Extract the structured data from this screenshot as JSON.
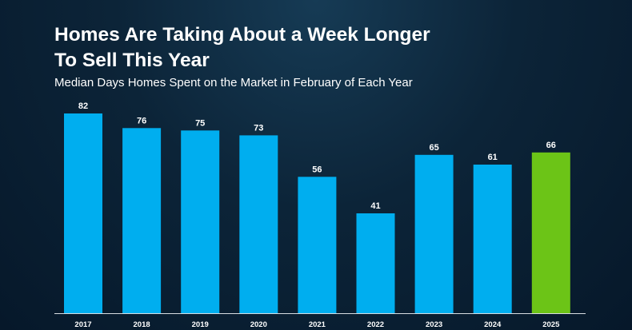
{
  "header": {
    "title_line1": "Homes Are Taking About a Week Longer",
    "title_line2": "To Sell This Year",
    "subtitle": "Median Days Homes Spent on the Market in February of Each Year"
  },
  "colors": {
    "default_bar": "#00aeef",
    "highlight_bar": "#6cc417",
    "axis": "#d8dde2",
    "text": "#ffffff"
  },
  "chart_data": {
    "type": "bar",
    "title": "Homes Are Taking About a Week Longer To Sell This Year",
    "subtitle": "Median Days Homes Spent on the Market in February of Each Year",
    "categories": [
      "2017",
      "2018",
      "2019",
      "2020",
      "2021",
      "2022",
      "2023",
      "2024",
      "2025"
    ],
    "values": [
      82,
      76,
      75,
      73,
      56,
      41,
      65,
      61,
      66
    ],
    "highlight_category": "2025",
    "data_labels": true,
    "grid": false,
    "legend": "none",
    "ylim": [
      0,
      82
    ]
  }
}
